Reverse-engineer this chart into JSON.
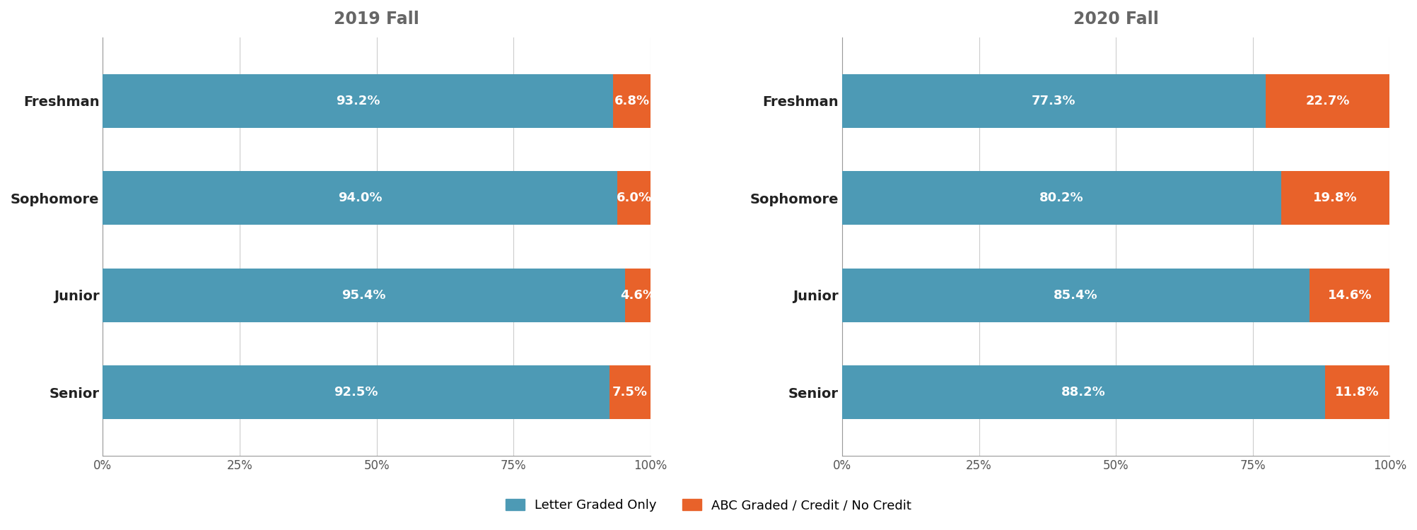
{
  "title_left": "2019 Fall",
  "title_right": "2020 Fall",
  "categories": [
    "Freshman",
    "Sophomore",
    "Junior",
    "Senior"
  ],
  "data_2019": {
    "letter_graded": [
      93.2,
      94.0,
      95.4,
      92.5
    ],
    "abc_graded": [
      6.8,
      6.0,
      4.6,
      7.5
    ]
  },
  "data_2020": {
    "letter_graded": [
      77.3,
      80.2,
      85.4,
      88.2
    ],
    "abc_graded": [
      22.7,
      19.8,
      14.6,
      11.8
    ]
  },
  "color_letter": "#4d9ab5",
  "color_abc": "#e8622a",
  "legend_letter": "Letter Graded Only",
  "legend_abc": "ABC Graded / Credit / No Credit",
  "background_color": "#ffffff",
  "bar_height": 0.55,
  "xlim": [
    0,
    100
  ],
  "xticks": [
    0,
    25,
    50,
    75,
    100
  ],
  "xticklabels": [
    "0%",
    "25%",
    "50%",
    "75%",
    "100%"
  ],
  "title_fontsize": 17,
  "tick_fontsize": 12,
  "category_fontsize": 14,
  "bar_label_fontsize": 13,
  "legend_fontsize": 13
}
